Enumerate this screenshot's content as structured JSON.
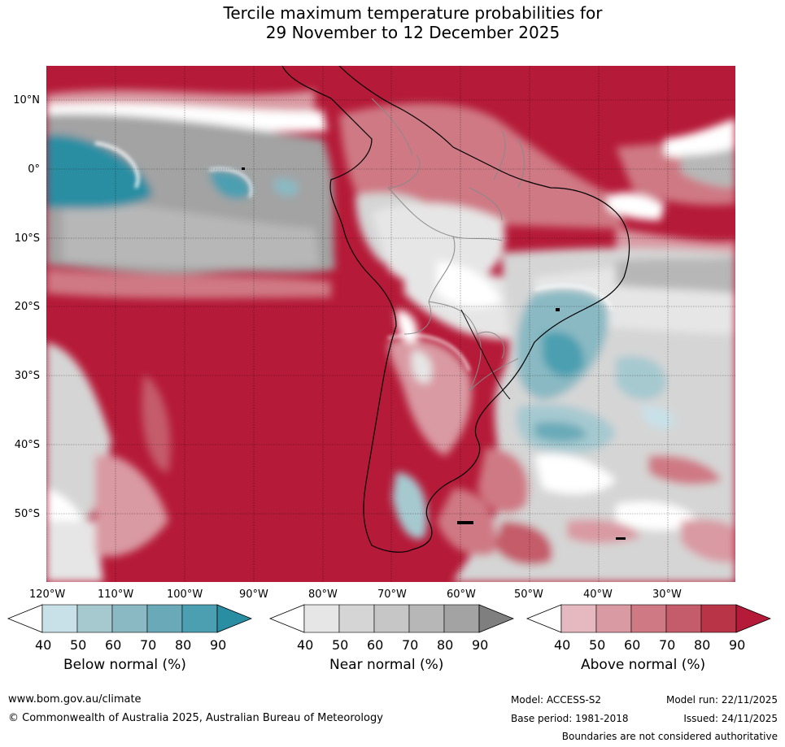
{
  "title": {
    "line1": "Tercile maximum temperature probabilities for",
    "line2": "29 November to 12 December 2025"
  },
  "map": {
    "lat_labels": [
      "10°N",
      "0°",
      "10°S",
      "20°S",
      "30°S",
      "40°S",
      "50°S"
    ],
    "lon_labels": [
      "120°W",
      "110°W",
      "100°W",
      "90°W",
      "80°W",
      "70°W",
      "60°W",
      "50°W",
      "40°W",
      "30°W"
    ]
  },
  "legend": {
    "below": {
      "title": "Below normal (%)",
      "ticks": [
        "40",
        "50",
        "60",
        "70",
        "80",
        "90"
      ],
      "colors": [
        "#ffffff",
        "#c8e1e8",
        "#a6c9d0",
        "#8ab9c3",
        "#6aaab8",
        "#4b9fb1",
        "#2a8ea3"
      ]
    },
    "near": {
      "title": "Near normal (%)",
      "ticks": [
        "40",
        "50",
        "60",
        "70",
        "80",
        "90"
      ],
      "colors": [
        "#ffffff",
        "#e6e6e6",
        "#d5d5d5",
        "#c6c6c6",
        "#b7b7b7",
        "#a3a3a3",
        "#7f7f7f"
      ]
    },
    "above": {
      "title": "Above normal (%)",
      "ticks": [
        "40",
        "50",
        "60",
        "70",
        "80",
        "90"
      ],
      "colors": [
        "#ffffff",
        "#e5b9bf",
        "#d99aa3",
        "#cf7984",
        "#c45c6b",
        "#ba3448",
        "#b51a38"
      ]
    }
  },
  "footer": {
    "website": "www.bom.gov.au/climate",
    "copyright": "© Commonwealth of Australia 2025, Australian Bureau of Meteorology",
    "model": "Model: ACCESS-S2",
    "model_run": "Model run: 22/11/2025",
    "base_period": "Base period: 1981-2018",
    "issued": "Issued: 24/11/2025",
    "disclaimer": "Boundaries are not considered authoritative"
  }
}
